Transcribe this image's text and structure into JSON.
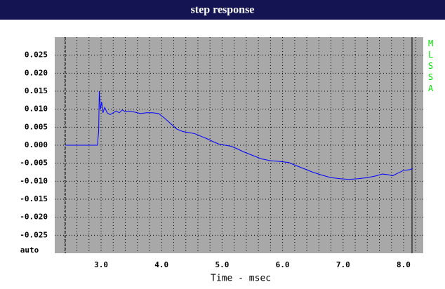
{
  "chart_data": {
    "type": "line",
    "title": "step response",
    "x_label": "Time - msec",
    "side_label": "MLSSA",
    "y_auto_label": "auto",
    "x": [
      2.41,
      2.94,
      2.96,
      2.97,
      2.99,
      3.01,
      3.03,
      3.06,
      3.1,
      3.15,
      3.2,
      3.25,
      3.3,
      3.35,
      3.4,
      3.45,
      3.55,
      3.65,
      3.75,
      3.85,
      3.95,
      4.05,
      4.15,
      4.25,
      4.35,
      4.45,
      4.55,
      4.65,
      4.75,
      4.85,
      4.95,
      5.05,
      5.15,
      5.25,
      5.35,
      5.5,
      5.65,
      5.8,
      5.95,
      6.1,
      6.2,
      6.35,
      6.5,
      6.65,
      6.8,
      6.95,
      7.1,
      7.25,
      7.4,
      7.55,
      7.65,
      7.75,
      7.82,
      7.9,
      8.0,
      8.1,
      8.15
    ],
    "values": [
      0,
      0,
      0.004,
      0.015,
      0.01,
      0.012,
      0.009,
      0.0105,
      0.009,
      0.0085,
      0.009,
      0.0095,
      0.009,
      0.0098,
      0.0093,
      0.0095,
      0.0092,
      0.0088,
      0.009,
      0.009,
      0.0088,
      0.0075,
      0.006,
      0.0045,
      0.0038,
      0.0035,
      0.0032,
      0.0025,
      0.0018,
      0.001,
      0.0003,
      0,
      -0.0003,
      -0.001,
      -0.0018,
      -0.0028,
      -0.0038,
      -0.0043,
      -0.0045,
      -0.0048,
      -0.0055,
      -0.0065,
      -0.0075,
      -0.0083,
      -0.009,
      -0.0093,
      -0.0095,
      -0.0093,
      -0.009,
      -0.0085,
      -0.008,
      -0.0082,
      -0.0085,
      -0.0078,
      -0.007,
      -0.0068,
      -0.0065
    ],
    "color": "#0000ff",
    "xlim": [
      2.234,
      8.325
    ],
    "ylim": [
      -0.03,
      0.03
    ],
    "xticks": [
      {
        "value": 3,
        "label": "3.0"
      },
      {
        "value": 4,
        "label": "4.0"
      },
      {
        "value": 5,
        "label": "5.0"
      },
      {
        "value": 6,
        "label": "6.0"
      },
      {
        "value": 7,
        "label": "7.0"
      },
      {
        "value": 8,
        "label": "8.0"
      }
    ],
    "yticks": [
      {
        "value": 0.025,
        "label": "0.025"
      },
      {
        "value": 0.02,
        "label": "0.020"
      },
      {
        "value": 0.015,
        "label": "0.015"
      },
      {
        "value": 0.01,
        "label": "0.010"
      },
      {
        "value": 0.005,
        "label": "0.005"
      },
      {
        "value": 0,
        "label": "0.000"
      },
      {
        "value": -0.005,
        "label": "-0.005"
      },
      {
        "value": -0.01,
        "label": "-0.010"
      },
      {
        "value": -0.015,
        "label": "-0.015"
      },
      {
        "value": -0.02,
        "label": "-0.020"
      },
      {
        "value": -0.025,
        "label": "-0.025"
      }
    ],
    "grid": true
  }
}
